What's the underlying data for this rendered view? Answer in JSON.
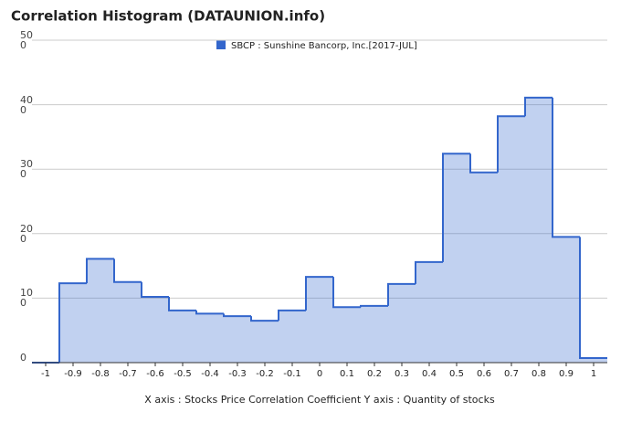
{
  "chart_data": {
    "type": "histogram",
    "title": "Correlation Histogram (DATAUNION.info)",
    "xlabel": "X axis : Stocks Price Correlation Coefficient  Y axis : Quantity of stocks",
    "series": [
      {
        "name": "SBCP : Sunshine Bancorp, Inc.[2017-JUL]",
        "color": "#3366cc",
        "bins": [
          -1.05,
          -0.95,
          -0.85,
          -0.75,
          -0.65,
          -0.55,
          -0.45,
          -0.35,
          -0.25,
          -0.15,
          -0.05,
          0.05,
          0.15,
          0.25,
          0.35,
          0.45,
          0.55,
          0.65,
          0.75,
          0.85,
          0.95,
          1.05
        ],
        "values": [
          0,
          123,
          161,
          125,
          102,
          81,
          76,
          72,
          65,
          81,
          133,
          86,
          88,
          122,
          156,
          324,
          295,
          382,
          411,
          195,
          7
        ]
      }
    ],
    "xlim": [
      -1.05,
      1.05
    ],
    "xticks": [
      -1,
      -0.9,
      -0.8,
      -0.7,
      -0.6,
      -0.5,
      -0.4,
      -0.3,
      -0.2,
      -0.1,
      0,
      0.1,
      0.2,
      0.3,
      0.4,
      0.5,
      0.6,
      0.7,
      0.8,
      0.9,
      1
    ],
    "ylim": [
      0,
      500
    ],
    "yticks": [
      0,
      100,
      200,
      300,
      400,
      500
    ],
    "grid": true
  }
}
